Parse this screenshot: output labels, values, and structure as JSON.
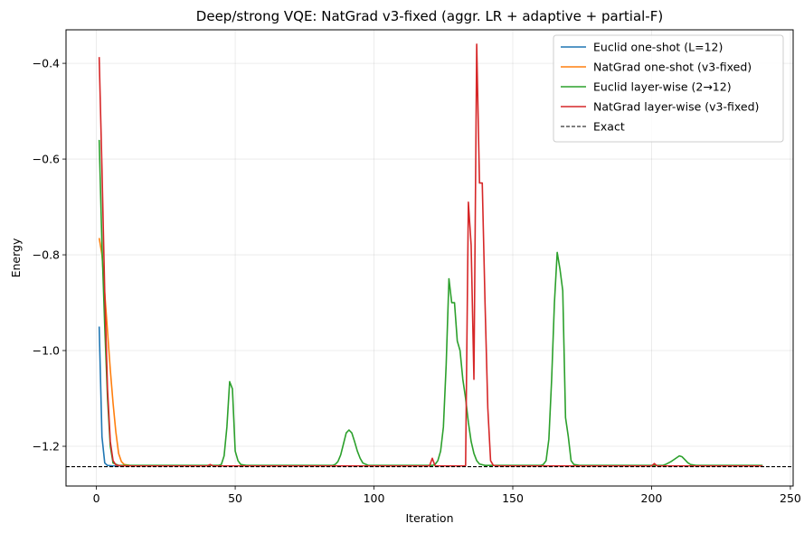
{
  "chart_data": {
    "type": "line",
    "title": "Deep/strong VQE: NatGrad v3-fixed (aggr. LR + adaptive + partial-F)",
    "xlabel": "Iteration",
    "ylabel": "Energy",
    "xlim": [
      -10.95,
      251
    ],
    "ylim": [
      -1.283,
      -0.33
    ],
    "xticks": [
      0,
      50,
      100,
      150,
      200,
      250
    ],
    "yticks": [
      -1.2,
      -1.0,
      -0.8,
      -0.6,
      -0.4
    ],
    "xtick_labels": [
      "0",
      "50",
      "100",
      "150",
      "200",
      "250"
    ],
    "ytick_labels": [
      "−1.2",
      "−1.0",
      "−0.8",
      "−0.6",
      "−0.4"
    ],
    "grid": true,
    "legend_position": "top-right",
    "exact_energy": -1.2425,
    "series": [
      {
        "name": "Euclid one-shot (L=12)",
        "color": "#1f77b4",
        "style": "solid",
        "points": [
          [
            1,
            -0.95
          ],
          [
            2,
            -1.18
          ],
          [
            3,
            -1.235
          ],
          [
            4,
            -1.24
          ],
          [
            6,
            -1.241
          ],
          [
            10,
            -1.241
          ],
          [
            20,
            -1.241
          ]
        ]
      },
      {
        "name": "NatGrad one-shot (v3-fixed)",
        "color": "#ff7f0e",
        "style": "solid",
        "points": [
          [
            1,
            -0.765
          ],
          [
            2,
            -0.8
          ],
          [
            3,
            -0.88
          ],
          [
            4,
            -0.96
          ],
          [
            5,
            -1.04
          ],
          [
            6,
            -1.11
          ],
          [
            7,
            -1.17
          ],
          [
            8,
            -1.215
          ],
          [
            9,
            -1.232
          ],
          [
            10,
            -1.238
          ],
          [
            12,
            -1.24
          ],
          [
            20,
            -1.241
          ],
          [
            30,
            -1.241
          ]
        ]
      },
      {
        "name": "Euclid layer-wise (2→12)",
        "color": "#2ca02c",
        "style": "solid",
        "points": [
          [
            1,
            -0.56
          ],
          [
            2,
            -0.78
          ],
          [
            3,
            -0.95
          ],
          [
            4,
            -1.1
          ],
          [
            5,
            -1.2
          ],
          [
            6,
            -1.235
          ],
          [
            8,
            -1.24
          ],
          [
            40,
            -1.24
          ],
          [
            44,
            -1.24
          ],
          [
            45,
            -1.238
          ],
          [
            46,
            -1.22
          ],
          [
            47,
            -1.16
          ],
          [
            48,
            -1.065
          ],
          [
            49,
            -1.08
          ],
          [
            50,
            -1.21
          ],
          [
            51,
            -1.23
          ],
          [
            52,
            -1.238
          ],
          [
            54,
            -1.24
          ],
          [
            85,
            -1.24
          ],
          [
            86,
            -1.238
          ],
          [
            87,
            -1.232
          ],
          [
            88,
            -1.218
          ],
          [
            89,
            -1.195
          ],
          [
            90,
            -1.172
          ],
          [
            91,
            -1.166
          ],
          [
            92,
            -1.172
          ],
          [
            93,
            -1.19
          ],
          [
            94,
            -1.21
          ],
          [
            95,
            -1.225
          ],
          [
            96,
            -1.235
          ],
          [
            98,
            -1.24
          ],
          [
            120,
            -1.24
          ],
          [
            121,
            -1.24
          ],
          [
            122,
            -1.238
          ],
          [
            123,
            -1.23
          ],
          [
            124,
            -1.21
          ],
          [
            125,
            -1.16
          ],
          [
            126,
            -1.03
          ],
          [
            127,
            -0.85
          ],
          [
            128,
            -0.9
          ],
          [
            129,
            -0.9
          ],
          [
            130,
            -0.98
          ],
          [
            131,
            -1.0
          ],
          [
            132,
            -1.06
          ],
          [
            133,
            -1.1
          ],
          [
            134,
            -1.15
          ],
          [
            135,
            -1.19
          ],
          [
            136,
            -1.215
          ],
          [
            137,
            -1.23
          ],
          [
            138,
            -1.237
          ],
          [
            140,
            -1.24
          ],
          [
            160,
            -1.24
          ],
          [
            161,
            -1.238
          ],
          [
            162,
            -1.23
          ],
          [
            163,
            -1.185
          ],
          [
            164,
            -1.06
          ],
          [
            165,
            -0.9
          ],
          [
            166,
            -0.795
          ],
          [
            167,
            -0.83
          ],
          [
            168,
            -0.875
          ],
          [
            169,
            -1.14
          ],
          [
            170,
            -1.18
          ],
          [
            171,
            -1.23
          ],
          [
            172,
            -1.238
          ],
          [
            174,
            -1.24
          ],
          [
            204,
            -1.24
          ],
          [
            205,
            -1.238
          ],
          [
            206,
            -1.235
          ],
          [
            207,
            -1.232
          ],
          [
            208,
            -1.228
          ],
          [
            209,
            -1.224
          ],
          [
            210,
            -1.22
          ],
          [
            211,
            -1.222
          ],
          [
            212,
            -1.228
          ],
          [
            213,
            -1.234
          ],
          [
            214,
            -1.238
          ],
          [
            216,
            -1.24
          ],
          [
            240,
            -1.24
          ]
        ]
      },
      {
        "name": "NatGrad layer-wise (v3-fixed)",
        "color": "#d62728",
        "style": "solid",
        "points": [
          [
            1,
            -0.387
          ],
          [
            2,
            -0.62
          ],
          [
            3,
            -0.88
          ],
          [
            4,
            -1.08
          ],
          [
            5,
            -1.19
          ],
          [
            6,
            -1.23
          ],
          [
            7,
            -1.239
          ],
          [
            9,
            -1.241
          ],
          [
            40,
            -1.241
          ],
          [
            41,
            -1.238
          ],
          [
            42,
            -1.241
          ],
          [
            120,
            -1.241
          ],
          [
            121,
            -1.225
          ],
          [
            122,
            -1.241
          ],
          [
            133,
            -1.241
          ],
          [
            134,
            -0.69
          ],
          [
            135,
            -0.78
          ],
          [
            136,
            -1.06
          ],
          [
            137,
            -0.36
          ],
          [
            138,
            -0.65
          ],
          [
            139,
            -0.65
          ],
          [
            140,
            -0.9
          ],
          [
            141,
            -1.12
          ],
          [
            142,
            -1.23
          ],
          [
            143,
            -1.24
          ],
          [
            145,
            -1.241
          ],
          [
            200,
            -1.241
          ],
          [
            201,
            -1.236
          ],
          [
            202,
            -1.241
          ],
          [
            240,
            -1.241
          ]
        ]
      },
      {
        "name": "Exact",
        "color": "#000000",
        "style": "dashed",
        "points": [
          [
            -10.95,
            -1.2425
          ],
          [
            251,
            -1.2425
          ]
        ]
      }
    ]
  }
}
